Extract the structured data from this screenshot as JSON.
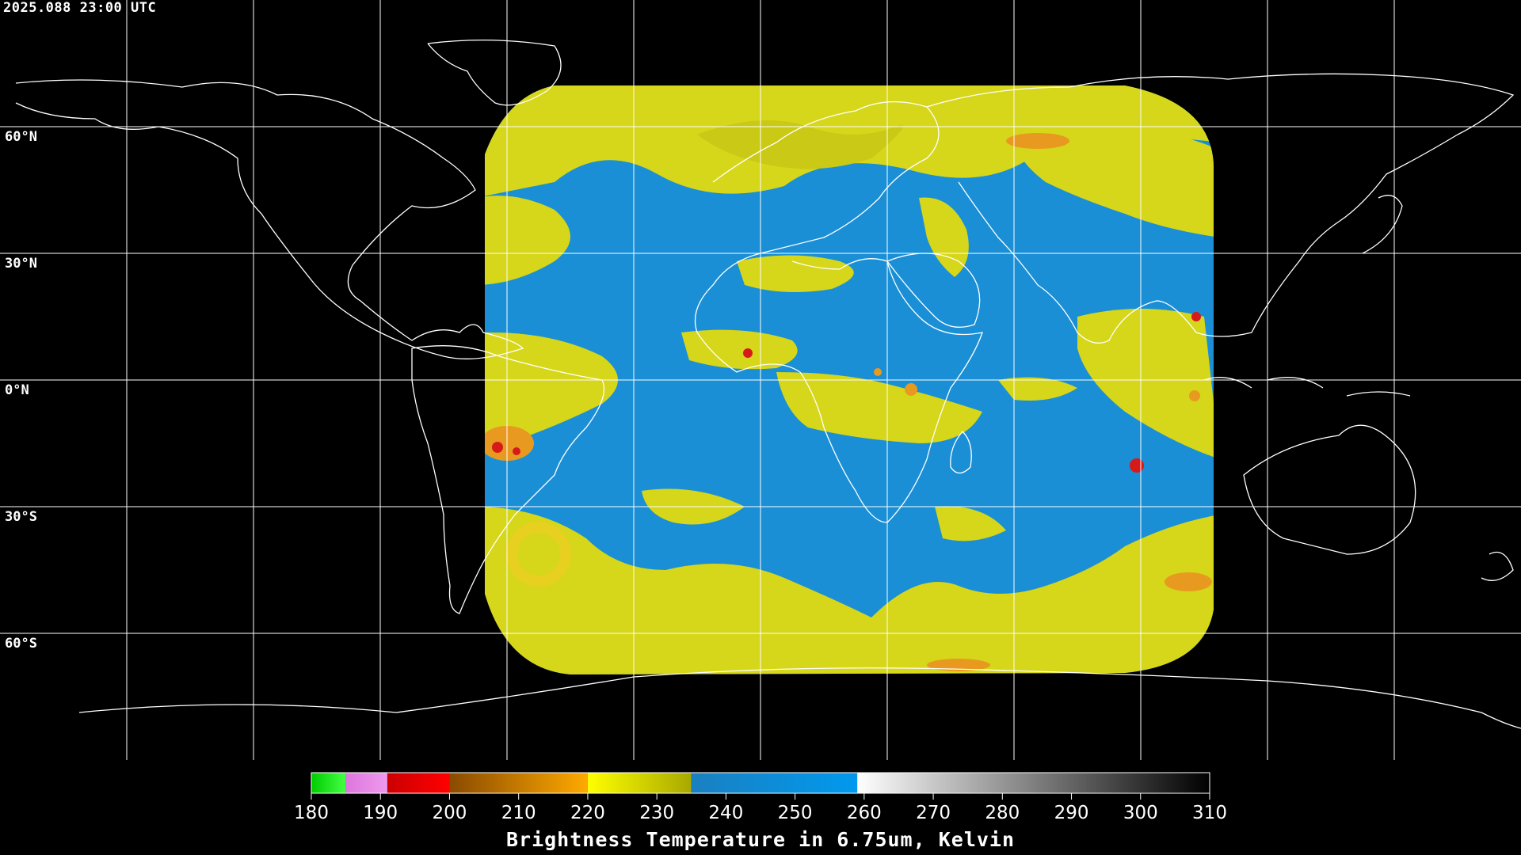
{
  "timestamp": "2025.088 23:00 UTC",
  "lat_labels": [
    "60°N",
    "30°N",
    "0°N",
    "30°S",
    "60°S"
  ],
  "colorbar": {
    "ticks": [
      "180",
      "190",
      "200",
      "210",
      "220",
      "230",
      "240",
      "250",
      "260",
      "270",
      "280",
      "290",
      "300",
      "310"
    ],
    "title": "Brightness Temperature in 6.75um, Kelvin",
    "range": [
      180,
      310
    ],
    "stops": [
      {
        "from": 180,
        "to": 185,
        "colors": [
          "#00cc00",
          "#44ff44"
        ]
      },
      {
        "from": 185,
        "to": 191,
        "colors": [
          "#dd77dd",
          "#ee99ee"
        ]
      },
      {
        "from": 191,
        "to": 200,
        "colors": [
          "#cc0000",
          "#ff0000"
        ]
      },
      {
        "from": 200,
        "to": 220,
        "colors": [
          "#8a4a00",
          "#ffaa00"
        ]
      },
      {
        "from": 220,
        "to": 235,
        "colors": [
          "#ffff00",
          "#a8a800"
        ]
      },
      {
        "from": 235,
        "to": 259,
        "colors": [
          "#1a80c0",
          "#0099ee"
        ]
      },
      {
        "from": 259,
        "to": 310,
        "colors": [
          "#ffffff",
          "#000000"
        ]
      }
    ]
  },
  "colors": {
    "background": "#000000",
    "moist": "#1a8fd6",
    "dry": "#d6d61a",
    "very_dry": "#e89a20",
    "convective": "#d61a1a",
    "coastline": "#ffffff",
    "grid": "#ffffff"
  }
}
